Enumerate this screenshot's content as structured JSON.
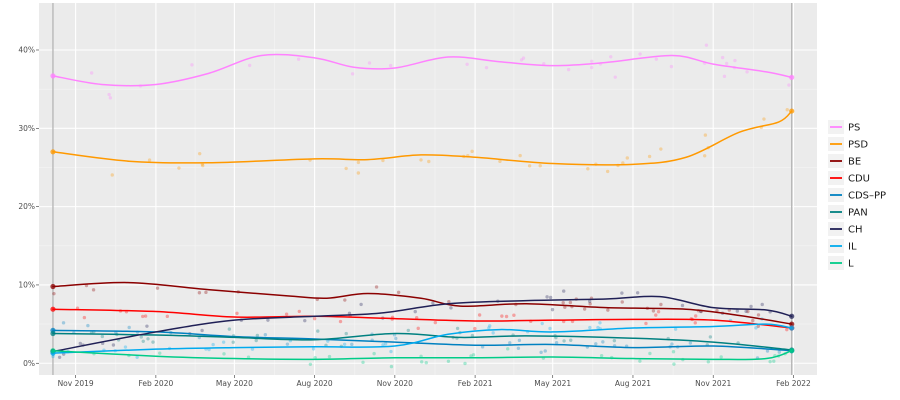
{
  "chart_data": {
    "type": "line",
    "title": "",
    "xlabel": "",
    "ylabel": "",
    "x_ticks": [
      "Nov 2019",
      "Feb 2020",
      "May 2020",
      "Aug 2020",
      "Nov 2020",
      "Feb 2021",
      "May 2021",
      "Aug 2021",
      "Nov 2021",
      "Feb 2022"
    ],
    "y_ticks": [
      "0%",
      "10%",
      "20%",
      "30%",
      "40%"
    ],
    "ylim": [
      -1.5,
      46
    ],
    "xlim": [
      "2019-09-20",
      "2022-02-28"
    ],
    "grid": true,
    "legend_position": "right",
    "series": [
      {
        "name": "PS",
        "color": "#ff82ff",
        "points": [
          [
            "2019-10-06",
            36.7
          ],
          [
            "2019-12-01",
            35.6
          ],
          [
            "2020-02-01",
            35.6
          ],
          [
            "2020-04-01",
            37.0
          ],
          [
            "2020-06-01",
            39.3
          ],
          [
            "2020-08-01",
            39.0
          ],
          [
            "2020-09-15",
            37.8
          ],
          [
            "2020-11-01",
            37.7
          ],
          [
            "2021-01-01",
            39.1
          ],
          [
            "2021-03-01",
            38.5
          ],
          [
            "2021-05-01",
            38.0
          ],
          [
            "2021-07-01",
            38.4
          ],
          [
            "2021-09-15",
            39.3
          ],
          [
            "2021-11-01",
            38.2
          ],
          [
            "2022-01-01",
            37.2
          ],
          [
            "2022-01-30",
            36.5
          ]
        ]
      },
      {
        "name": "PSD",
        "color": "#ff9900",
        "points": [
          [
            "2019-10-06",
            27.0
          ],
          [
            "2020-01-01",
            25.8
          ],
          [
            "2020-04-01",
            25.6
          ],
          [
            "2020-08-01",
            26.1
          ],
          [
            "2020-10-01",
            26.0
          ],
          [
            "2020-12-01",
            26.6
          ],
          [
            "2021-02-01",
            26.3
          ],
          [
            "2021-05-01",
            25.5
          ],
          [
            "2021-08-01",
            25.4
          ],
          [
            "2021-10-01",
            26.3
          ],
          [
            "2021-12-01",
            29.5
          ],
          [
            "2022-01-15",
            30.8
          ],
          [
            "2022-01-30",
            32.2
          ]
        ]
      },
      {
        "name": "BE",
        "color": "#8b0000",
        "points": [
          [
            "2019-10-06",
            9.8
          ],
          [
            "2020-01-01",
            10.3
          ],
          [
            "2020-04-01",
            9.4
          ],
          [
            "2020-07-01",
            8.6
          ],
          [
            "2020-08-15",
            8.3
          ],
          [
            "2020-10-01",
            8.9
          ],
          [
            "2020-12-01",
            8.3
          ],
          [
            "2021-01-15",
            7.3
          ],
          [
            "2021-04-01",
            7.6
          ],
          [
            "2021-07-01",
            7.1
          ],
          [
            "2021-10-01",
            6.9
          ],
          [
            "2021-12-01",
            6.1
          ],
          [
            "2022-01-30",
            5.0
          ]
        ]
      },
      {
        "name": "CDU",
        "color": "#ff0000",
        "points": [
          [
            "2019-10-06",
            6.9
          ],
          [
            "2020-02-01",
            6.6
          ],
          [
            "2020-05-01",
            5.9
          ],
          [
            "2020-08-01",
            6.0
          ],
          [
            "2020-11-01",
            5.7
          ],
          [
            "2021-02-01",
            5.4
          ],
          [
            "2021-05-01",
            5.5
          ],
          [
            "2021-08-01",
            5.6
          ],
          [
            "2021-11-01",
            5.5
          ],
          [
            "2022-01-30",
            4.5
          ]
        ]
      },
      {
        "name": "CDS–PP",
        "color": "#0080c0",
        "points": [
          [
            "2019-10-06",
            4.2
          ],
          [
            "2020-02-01",
            4.0
          ],
          [
            "2020-05-01",
            3.4
          ],
          [
            "2020-08-01",
            3.1
          ],
          [
            "2020-11-01",
            2.7
          ],
          [
            "2021-02-01",
            2.3
          ],
          [
            "2021-05-01",
            2.4
          ],
          [
            "2021-08-01",
            2.0
          ],
          [
            "2021-11-01",
            2.2
          ],
          [
            "2022-01-30",
            1.6
          ]
        ]
      },
      {
        "name": "PAN",
        "color": "#008080",
        "points": [
          [
            "2019-10-06",
            3.8
          ],
          [
            "2020-02-01",
            3.6
          ],
          [
            "2020-05-01",
            3.3
          ],
          [
            "2020-08-01",
            3.0
          ],
          [
            "2020-11-01",
            3.8
          ],
          [
            "2021-01-15",
            3.3
          ],
          [
            "2021-04-01",
            3.5
          ],
          [
            "2021-08-01",
            3.2
          ],
          [
            "2021-11-01",
            2.7
          ],
          [
            "2022-01-30",
            1.7
          ]
        ]
      },
      {
        "name": "CH",
        "color": "#202056",
        "points": [
          [
            "2019-10-06",
            1.5
          ],
          [
            "2020-02-01",
            4.0
          ],
          [
            "2020-05-01",
            5.5
          ],
          [
            "2020-08-01",
            6.0
          ],
          [
            "2020-10-15",
            6.4
          ],
          [
            "2021-01-01",
            7.6
          ],
          [
            "2021-04-01",
            8.0
          ],
          [
            "2021-07-01",
            8.2
          ],
          [
            "2021-09-01",
            8.5
          ],
          [
            "2021-11-01",
            7.1
          ],
          [
            "2022-01-01",
            6.8
          ],
          [
            "2022-01-30",
            6.0
          ]
        ]
      },
      {
        "name": "IL",
        "color": "#00aaee",
        "points": [
          [
            "2019-10-06",
            1.3
          ],
          [
            "2020-02-01",
            1.8
          ],
          [
            "2020-05-01",
            2.0
          ],
          [
            "2020-08-01",
            2.1
          ],
          [
            "2020-11-01",
            2.2
          ],
          [
            "2021-01-01",
            3.7
          ],
          [
            "2021-03-01",
            4.3
          ],
          [
            "2021-05-01",
            4.0
          ],
          [
            "2021-08-01",
            4.5
          ],
          [
            "2021-11-01",
            4.7
          ],
          [
            "2022-01-01",
            5.0
          ],
          [
            "2022-01-30",
            4.5
          ]
        ]
      },
      {
        "name": "L",
        "color": "#00cc88",
        "points": [
          [
            "2019-10-06",
            1.6
          ],
          [
            "2020-02-01",
            0.9
          ],
          [
            "2020-05-01",
            0.6
          ],
          [
            "2020-08-01",
            0.5
          ],
          [
            "2020-11-01",
            0.7
          ],
          [
            "2021-02-01",
            0.7
          ],
          [
            "2021-05-01",
            0.8
          ],
          [
            "2021-08-01",
            0.6
          ],
          [
            "2021-11-01",
            0.5
          ],
          [
            "2022-01-01",
            0.6
          ],
          [
            "2022-01-30",
            1.6
          ]
        ]
      }
    ]
  }
}
